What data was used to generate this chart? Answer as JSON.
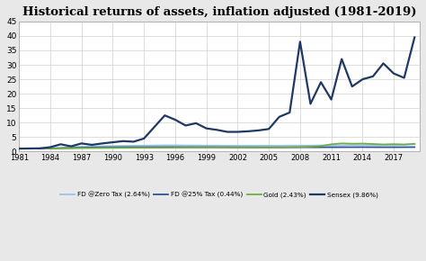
{
  "title": "Historical returns of assets, inflation adjusted (1981-2019)",
  "title_fontsize": 9.5,
  "ylim": [
    0,
    45
  ],
  "yticks": [
    0,
    5,
    10,
    15,
    20,
    25,
    30,
    35,
    40,
    45
  ],
  "xticks": [
    1981,
    1984,
    1987,
    1990,
    1993,
    1996,
    1999,
    2002,
    2005,
    2008,
    2011,
    2014,
    2017
  ],
  "background_color": "#e8e8e8",
  "plot_bg_color": "#ffffff",
  "years": [
    1981,
    1982,
    1983,
    1984,
    1985,
    1986,
    1987,
    1988,
    1989,
    1990,
    1991,
    1992,
    1993,
    1994,
    1995,
    1996,
    1997,
    1998,
    1999,
    2000,
    2001,
    2002,
    2003,
    2004,
    2005,
    2006,
    2007,
    2008,
    2009,
    2010,
    2011,
    2012,
    2013,
    2014,
    2015,
    2016,
    2017,
    2018,
    2019
  ],
  "fd_zero_tax": [
    1.0,
    1.05,
    1.1,
    1.15,
    1.3,
    1.5,
    1.65,
    1.75,
    1.85,
    1.9,
    1.95,
    2.0,
    2.05,
    2.1,
    2.15,
    2.15,
    2.1,
    2.1,
    2.05,
    2.05,
    2.0,
    2.0,
    2.0,
    2.0,
    2.0,
    2.0,
    2.05,
    2.05,
    2.05,
    2.1,
    2.1,
    2.15,
    2.2,
    2.2,
    2.2,
    2.2,
    2.2,
    2.3,
    2.5
  ],
  "fd_25tax": [
    1.0,
    1.02,
    1.04,
    1.07,
    1.15,
    1.25,
    1.35,
    1.4,
    1.45,
    1.48,
    1.5,
    1.52,
    1.53,
    1.55,
    1.56,
    1.56,
    1.55,
    1.54,
    1.53,
    1.52,
    1.5,
    1.48,
    1.48,
    1.47,
    1.46,
    1.47,
    1.48,
    1.48,
    1.47,
    1.47,
    1.48,
    1.49,
    1.5,
    1.51,
    1.5,
    1.49,
    1.49,
    1.5,
    1.52
  ],
  "gold": [
    1.0,
    1.02,
    1.04,
    1.06,
    1.08,
    1.12,
    1.17,
    1.2,
    1.22,
    1.25,
    1.27,
    1.28,
    1.3,
    1.32,
    1.33,
    1.34,
    1.36,
    1.37,
    1.38,
    1.38,
    1.37,
    1.36,
    1.36,
    1.36,
    1.36,
    1.38,
    1.4,
    1.55,
    1.7,
    1.9,
    2.5,
    2.8,
    2.7,
    2.75,
    2.6,
    2.45,
    2.55,
    2.45,
    2.65
  ],
  "sensex": [
    1.0,
    1.05,
    1.1,
    1.5,
    2.5,
    1.8,
    2.8,
    2.3,
    2.8,
    3.2,
    3.6,
    3.4,
    4.5,
    8.5,
    12.5,
    11.0,
    9.0,
    9.8,
    8.0,
    7.5,
    6.8,
    6.8,
    7.0,
    7.3,
    7.8,
    12.0,
    13.5,
    38.0,
    16.5,
    24.0,
    18.0,
    32.0,
    22.5,
    25.0,
    26.0,
    30.5,
    27.0,
    25.5,
    39.5
  ],
  "fd_zero_color": "#9dc3e6",
  "fd_25_color": "#2f5597",
  "gold_color": "#70ad47",
  "sensex_color": "#1f3864",
  "legend_labels": [
    "FD @Zero Tax (2.64%)",
    "FD @25% Tax (0.44%)",
    "Gold (2.43%)",
    "Sensex (9.86%)"
  ]
}
